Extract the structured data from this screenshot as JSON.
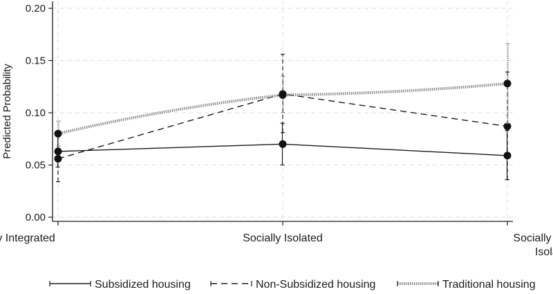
{
  "chart_data": {
    "type": "line",
    "ylabel": "Predicted Probability",
    "xlabel": "",
    "categories": [
      "Socially Integrated",
      "Socially Isolated",
      [
        "Socially severely",
        "Isolated"
      ]
    ],
    "ylim": [
      0,
      0.2
    ],
    "yticks": [
      "0.00",
      "0.05",
      "0.10",
      "0.15",
      "0.20"
    ],
    "grid": true,
    "legend_position": "bottom",
    "series": [
      {
        "name": "Subsidized housing",
        "style": "solid",
        "values": [
          0.063,
          0.07,
          0.059
        ],
        "ci_low": [
          0.048,
          0.05,
          0.036
        ],
        "ci_high": [
          0.078,
          0.09,
          0.083
        ]
      },
      {
        "name": "Non-Subsidized housing",
        "style": "dashed",
        "values": [
          0.056,
          0.118,
          0.087
        ],
        "ci_low": [
          0.034,
          0.081,
          0.036
        ],
        "ci_high": [
          0.079,
          0.156,
          0.139
        ]
      },
      {
        "name": "Traditional housing",
        "style": "dotted",
        "values": [
          0.08,
          0.117,
          0.128
        ],
        "ci_low": [
          0.068,
          0.1,
          0.09
        ],
        "ci_high": [
          0.092,
          0.135,
          0.166
        ]
      }
    ],
    "colors": {
      "line": "#1a1a1a",
      "grid": "#e2e2e2",
      "dotted_line": "#8a8a8a"
    }
  }
}
